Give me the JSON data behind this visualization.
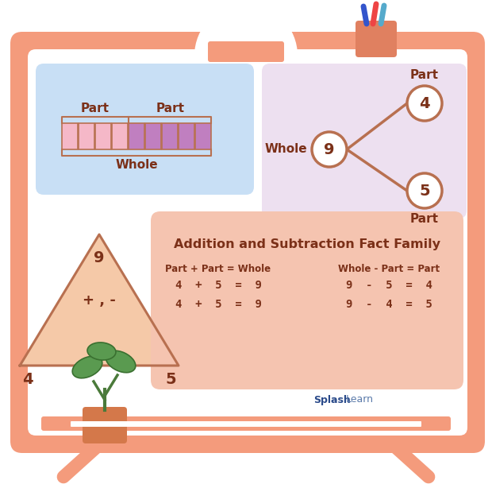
{
  "bg_color": "#ffffff",
  "board_outer_color": "#f49b7c",
  "board_inner_color": "#ffffff",
  "title": "Addition and Subtraction Fact Family",
  "title_color": "#7b3018",
  "fact_box_color": "#f5c4b0",
  "part_part_whole_bg": "#c8dff5",
  "number_bond_bg": "#ede0f0",
  "triangle_fill": "#f5c9a8",
  "triangle_edge": "#b87050",
  "equation_color": "#7b3018",
  "circle_edge": "#b87050",
  "circle_fill": "#ffffff",
  "pink_cells": "#f5b8c8",
  "purple_cells": "#c07fc0",
  "bar_border": "#b87050",
  "splashlearn_bold": "#2a4a8a",
  "splashlearn_normal": "#5a7aaa",
  "whole_label": "Whole",
  "part_label": "Part",
  "whole_node": "9",
  "part1_node": "4",
  "part2_node": "5",
  "triangle_top": "9",
  "triangle_bl": "4",
  "triangle_br": "5",
  "triangle_mid": "+ , -",
  "eq_left_header": "Part + Part = Whole",
  "eq_right_header": "Whole - Part = Part",
  "eq_left_1": "4  +  5  =  9",
  "eq_left_2": "4  +  5  =  9",
  "eq_right_1": "9  -  5  =  4",
  "eq_right_2": "9  -  4  =  5",
  "num_pink_cells": 4,
  "num_purple_cells": 5,
  "splashlearn_text": "SplashLearn"
}
